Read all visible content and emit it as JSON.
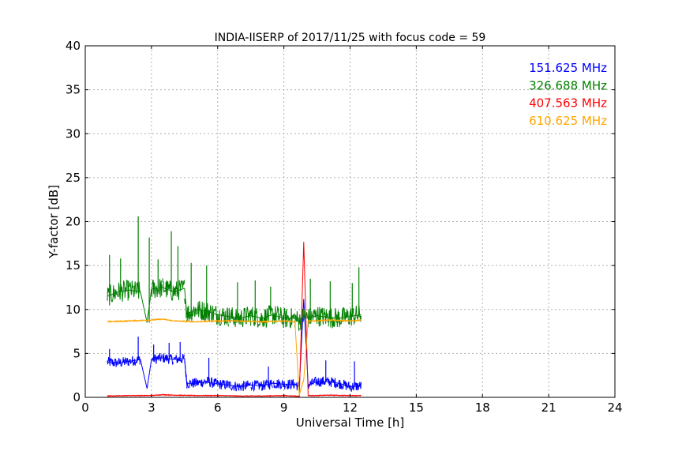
{
  "chart_data": {
    "type": "line",
    "title": "INDIA-IISERP of 2017/11/25 with focus code = 59",
    "xlabel": "Universal Time [h]",
    "ylabel": "Y-factor [dB]",
    "xlim": [
      0,
      24
    ],
    "ylim": [
      0,
      40
    ],
    "x_ticks": [
      0,
      3,
      6,
      9,
      12,
      15,
      18,
      21,
      24
    ],
    "y_ticks": [
      0,
      5,
      10,
      15,
      20,
      25,
      30,
      35,
      40
    ],
    "grid": true,
    "legend_position": "top-right",
    "series": [
      {
        "name": "151.625 MHz",
        "color": "#0000ff",
        "x": [
          1.0,
          1.5,
          2.0,
          2.5,
          2.8,
          3.0,
          3.5,
          4.0,
          4.5,
          4.6,
          5.0,
          5.5,
          6.0,
          6.5,
          7.0,
          7.5,
          8.0,
          8.5,
          9.0,
          9.5,
          9.7,
          9.9,
          10.1,
          10.5,
          11.0,
          11.5,
          12.0,
          12.5
        ],
        "values": [
          4.0,
          3.9,
          4.1,
          4.3,
          1.0,
          4.3,
          4.5,
          4.3,
          4.4,
          1.6,
          1.6,
          1.8,
          1.5,
          1.4,
          1.2,
          1.4,
          1.3,
          1.6,
          1.5,
          1.5,
          1.2,
          11.2,
          1.4,
          1.8,
          1.8,
          1.6,
          1.2,
          1.3
        ],
        "peak_x": [
          1.1,
          2.4,
          3.1,
          3.8,
          4.3,
          5.6,
          8.3,
          10.9,
          12.2
        ],
        "peak_y": [
          5.5,
          6.9,
          6.0,
          6.2,
          6.3,
          4.5,
          3.5,
          4.2,
          4.1
        ]
      },
      {
        "name": "326.688 MHz",
        "color": "#008000",
        "x": [
          1.0,
          1.5,
          2.0,
          2.5,
          2.8,
          3.0,
          3.5,
          4.0,
          4.5,
          4.6,
          5.0,
          5.5,
          6.0,
          6.5,
          7.0,
          7.5,
          8.0,
          8.5,
          9.0,
          9.5,
          9.7,
          9.9,
          10.1,
          10.5,
          11.0,
          11.5,
          12.0,
          12.5
        ],
        "values": [
          11.5,
          12.0,
          12.2,
          12.0,
          8.5,
          12.3,
          12.5,
          12.0,
          12.4,
          9.5,
          10.0,
          9.8,
          9.4,
          9.2,
          9.0,
          9.3,
          9.0,
          9.4,
          9.0,
          9.0,
          8.6,
          9.2,
          9.0,
          9.3,
          9.1,
          9.0,
          9.2,
          9.4
        ],
        "peak_x": [
          1.1,
          1.6,
          2.4,
          2.9,
          3.3,
          3.9,
          4.2,
          4.8,
          5.5,
          6.9,
          7.7,
          8.4,
          10.2,
          11.1,
          12.1,
          12.4
        ],
        "peak_y": [
          16.2,
          15.8,
          20.6,
          18.2,
          15.7,
          18.9,
          17.2,
          15.3,
          15.0,
          13.1,
          13.3,
          12.6,
          13.5,
          13.2,
          13.0,
          14.8
        ]
      },
      {
        "name": "407.563 MHz",
        "color": "#ff0000",
        "x": [
          1.0,
          2.0,
          3.0,
          3.5,
          4.0,
          5.0,
          6.0,
          7.0,
          8.0,
          9.0,
          9.5,
          9.7,
          9.9,
          10.1,
          10.5,
          11.0,
          12.0,
          12.5
        ],
        "values": [
          0.15,
          0.2,
          0.2,
          0.3,
          0.25,
          0.2,
          0.2,
          0.15,
          0.15,
          0.2,
          0.15,
          0.1,
          17.7,
          0.2,
          0.2,
          0.25,
          0.2,
          0.2
        ]
      },
      {
        "name": "610.625 MHz",
        "color": "#ffa500",
        "x": [
          1.0,
          2.0,
          3.0,
          3.5,
          4.0,
          5.0,
          6.0,
          7.0,
          8.0,
          9.0,
          9.5,
          9.7,
          9.9,
          10.1,
          10.5,
          11.0,
          12.0,
          12.5
        ],
        "values": [
          8.6,
          8.7,
          8.8,
          8.9,
          8.7,
          8.6,
          8.7,
          8.7,
          8.6,
          8.7,
          8.6,
          0.3,
          2.0,
          8.7,
          8.7,
          8.8,
          8.7,
          8.8
        ]
      }
    ]
  }
}
